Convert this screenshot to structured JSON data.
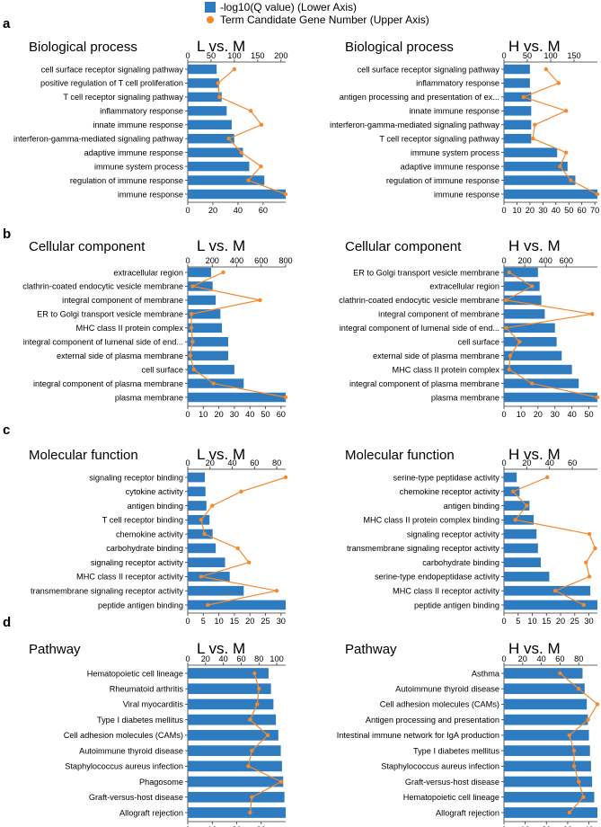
{
  "legend": {
    "bar_label": "-log10(Q value) (Lower Axis)",
    "line_label": "Term Candidate Gene Number (Upper Axis)",
    "bar_color": "#2e7bbf",
    "line_color": "#f5892d"
  },
  "panels": [
    {
      "letter": "a"
    },
    {
      "letter": "b"
    },
    {
      "letter": "c"
    },
    {
      "letter": "d"
    }
  ],
  "chart_data": [
    {
      "type": "bar",
      "panel": "a",
      "title": "Biological process",
      "comparison": "L vs. M",
      "categories": [
        "cell surface receptor signaling pathway",
        "positive regulation of T cell proliferation",
        "T cell receptor signaling pathway",
        "inflammatory response",
        "innate immune response",
        "interferon-gamma-mediated signaling pathway",
        "adaptive immune response",
        "immune system process",
        "regulation of immune response",
        "immune response"
      ],
      "bar_values": [
        23,
        25,
        27,
        31,
        35,
        37,
        44,
        49,
        61,
        78
      ],
      "line_values": [
        100,
        65,
        68,
        135,
        158,
        88,
        115,
        157,
        130,
        210
      ],
      "lower_ticks": [
        0,
        20,
        40,
        60
      ],
      "lower_max": 78,
      "upper_ticks": [
        0,
        50,
        100,
        150,
        200
      ],
      "upper_max": 210
    },
    {
      "type": "bar",
      "panel": "a",
      "title": "Biological process",
      "comparison": "H vs. M",
      "categories": [
        "cell surface receptor signaling pathway",
        "inflammatory response",
        "antigen processing and presentation of ex...",
        "innate immune response",
        "interferon-gamma-mediated signaling pathway",
        "T cell receptor signaling pathway",
        "immune system process",
        "adaptive immune response",
        "regulation of immune response",
        "immune response"
      ],
      "bar_values": [
        20,
        20,
        21,
        21,
        21,
        21,
        41,
        49,
        55,
        72
      ],
      "line_values": [
        90,
        117,
        42,
        133,
        66,
        62,
        133,
        120,
        143,
        200
      ],
      "lower_ticks": [
        0,
        10,
        20,
        30,
        40,
        50,
        60,
        70
      ],
      "lower_max": 72,
      "upper_ticks": [
        0,
        50,
        100,
        150
      ],
      "upper_max": 200
    },
    {
      "type": "bar",
      "panel": "b",
      "title": "Cellular component",
      "comparison": "L vs. M",
      "categories": [
        "extracellular region",
        "clathrin-coated endocytic vesicle membrane",
        "integral component of membrane",
        "ER to Golgi transport vesicle membrane",
        "MHC class II protein complex",
        "integral component of lumenal side of end...",
        "external side of plasma membrane",
        "cell surface",
        "integral component of plasma membrane",
        "plasma membrane"
      ],
      "bar_values": [
        15,
        16,
        18,
        21,
        22,
        26,
        26,
        30,
        36,
        63
      ],
      "line_values": [
        290,
        40,
        590,
        30,
        30,
        40,
        20,
        50,
        210,
        800
      ],
      "lower_ticks": [
        0,
        10,
        20,
        30,
        40,
        50,
        60
      ],
      "lower_max": 63,
      "upper_ticks": [
        0,
        200,
        400,
        600,
        800
      ],
      "upper_max": 800
    },
    {
      "type": "bar",
      "panel": "b",
      "title": "Cellular component",
      "comparison": "H vs. M",
      "categories": [
        "ER to Golgi transport vesicle membrane",
        "extracellular region",
        "clathrin-coated endocytic vesicle membrane",
        "integral component of membrane",
        "integral component of lumenal side of end...",
        "cell surface",
        "external side of plasma membrane",
        "MHC class II protein complex",
        "integral component of plasma membrane",
        "plasma membrane"
      ],
      "bar_values": [
        20,
        21,
        22,
        24,
        30,
        31,
        34,
        40,
        44,
        55
      ],
      "line_values": [
        50,
        270,
        20,
        850,
        20,
        150,
        60,
        50,
        270,
        900
      ],
      "lower_ticks": [
        0,
        10,
        20,
        30,
        40,
        50
      ],
      "lower_max": 55,
      "upper_ticks": [
        0,
        200,
        400,
        600
      ],
      "upper_max": 900
    },
    {
      "type": "bar",
      "panel": "c",
      "title": "Molecular function",
      "comparison": "L vs. M",
      "categories": [
        "signaling receptor binding",
        "cytokine activity",
        "antigen binding",
        "T cell receptor binding",
        "chemokine activity",
        "carbohydrate binding",
        "signaling receptor activity",
        "MHC class II receptor activity",
        "transmembrane signaling receptor activity",
        "peptide antigen binding"
      ],
      "bar_values": [
        5.5,
        5.7,
        6,
        7,
        8,
        9,
        12,
        13.5,
        18,
        31.5
      ],
      "line_values": [
        88,
        48,
        22,
        12,
        15,
        45,
        55,
        12,
        80,
        18
      ],
      "lower_ticks": [
        0,
        5,
        10,
        15,
        20,
        25,
        30
      ],
      "lower_max": 31.5,
      "upper_ticks": [
        0,
        20,
        40,
        60,
        80
      ],
      "upper_max": 88
    },
    {
      "type": "bar",
      "panel": "c",
      "title": "Molecular function",
      "comparison": "H vs. M",
      "categories": [
        "serine-type peptidase activity",
        "chemokine receptor activity",
        "antigen binding",
        "MHC class II protein complex binding",
        "signaling receptor activity",
        "transmembrane signaling receptor activity",
        "carbohydrate binding",
        "serine-type endopeptidase activity",
        "MHC class II receptor activity",
        "peptide antigen binding"
      ],
      "bar_values": [
        4.5,
        5.5,
        9,
        10.5,
        11.5,
        12,
        13,
        16,
        30.5,
        33
      ],
      "line_values": [
        38,
        8,
        20,
        10,
        75,
        80,
        72,
        75,
        45,
        70
      ],
      "lower_ticks": [
        0,
        5,
        10,
        15,
        20,
        25,
        30
      ],
      "lower_max": 33,
      "upper_ticks": [
        0,
        20,
        40,
        60
      ],
      "upper_max": 82
    },
    {
      "type": "bar",
      "panel": "d",
      "title": "Pathway",
      "comparison": "L vs. M",
      "categories": [
        "Hematopoietic cell lineage",
        "Rheumatoid arthritis",
        "Viral myocarditis",
        "Type I diabetes mellitus",
        "Cell adhesion molecules (CAMs)",
        "Autoimmune thyroid disease",
        "Staphylococcus aureus infection",
        "Phagosome",
        "Graft-versus-host disease",
        "Allograft rejection"
      ],
      "bar_values": [
        33,
        34,
        35,
        36,
        37,
        38,
        38.5,
        39,
        39.5,
        40
      ],
      "line_values": [
        75,
        80,
        78,
        70,
        90,
        72,
        68,
        105,
        72,
        70
      ],
      "lower_ticks": [
        0,
        10,
        20,
        30
      ],
      "lower_max": 40,
      "upper_ticks": [
        0,
        20,
        40,
        60,
        80,
        100
      ],
      "upper_max": 110
    },
    {
      "type": "bar",
      "panel": "d",
      "title": "Pathway",
      "comparison": "H vs. M",
      "categories": [
        "Asthma",
        "Autoimmune thyroid disease",
        "Cell adhesion molecules (CAMs)",
        "Antigen processing and presentation",
        "Intestinal immune network for IgA production",
        "Type I diabetes mellitus",
        "Staphylococcus aureus infection",
        "Graft-versus-host disease",
        "Hematopoietic cell lineage",
        "Allograft rejection"
      ],
      "bar_values": [
        37,
        38,
        39,
        39.5,
        40,
        40.5,
        41,
        41.5,
        42.5,
        44
      ],
      "line_values": [
        60,
        80,
        100,
        90,
        70,
        75,
        75,
        80,
        85,
        70
      ],
      "lower_ticks": [
        0,
        10,
        20,
        30,
        40
      ],
      "lower_max": 44,
      "upper_ticks": [
        0,
        20,
        40,
        60,
        80
      ],
      "upper_max": 100
    }
  ]
}
